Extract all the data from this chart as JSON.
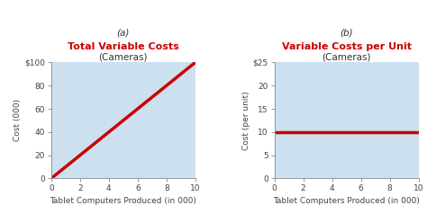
{
  "chart_a": {
    "label_letter": "(a)",
    "title_line1": "Total Variable Costs",
    "title_line2": "(Cameras)",
    "xlabel": "Tablet Computers Produced (in 000)",
    "ylabel": "Cost (000)",
    "xlim": [
      0,
      10
    ],
    "ylim": [
      0,
      100
    ],
    "xticks": [
      0,
      2,
      4,
      6,
      8,
      10
    ],
    "yticks": [
      0,
      20,
      40,
      60,
      80,
      100
    ],
    "ytick_labels": [
      "0",
      "20",
      "40",
      "60",
      "80",
      "$100"
    ],
    "line_x": [
      0,
      10
    ],
    "line_y": [
      0,
      100
    ],
    "line_color": "#cc0000",
    "line_width": 2.5
  },
  "chart_b": {
    "label_letter": "(b)",
    "title_line1": "Variable Costs per Unit",
    "title_line2": "(Cameras)",
    "xlabel": "Tablet Computers Produced (in 000)",
    "ylabel": "Cost (per unit)",
    "xlim": [
      0,
      10
    ],
    "ylim": [
      0,
      25
    ],
    "xticks": [
      0,
      2,
      4,
      6,
      8,
      10
    ],
    "yticks": [
      0,
      5,
      10,
      15,
      20,
      25
    ],
    "ytick_labels": [
      "0",
      "5",
      "10",
      "15",
      "20",
      "$25"
    ],
    "line_x": [
      0,
      10
    ],
    "line_y": [
      10,
      10
    ],
    "line_color": "#cc0000",
    "line_width": 2.5
  },
  "bg_color": "#cce0f0",
  "title_color": "#cc0000",
  "letter_color": "#333333",
  "subtitle_color": "#333333",
  "tick_color": "#444444",
  "axis_color": "#888888",
  "fig_bg": "#ffffff",
  "letter_fontsize": 7.5,
  "title_fontsize": 8.0,
  "subtitle_fontsize": 7.5,
  "label_fontsize": 6.5,
  "tick_fontsize": 6.5
}
